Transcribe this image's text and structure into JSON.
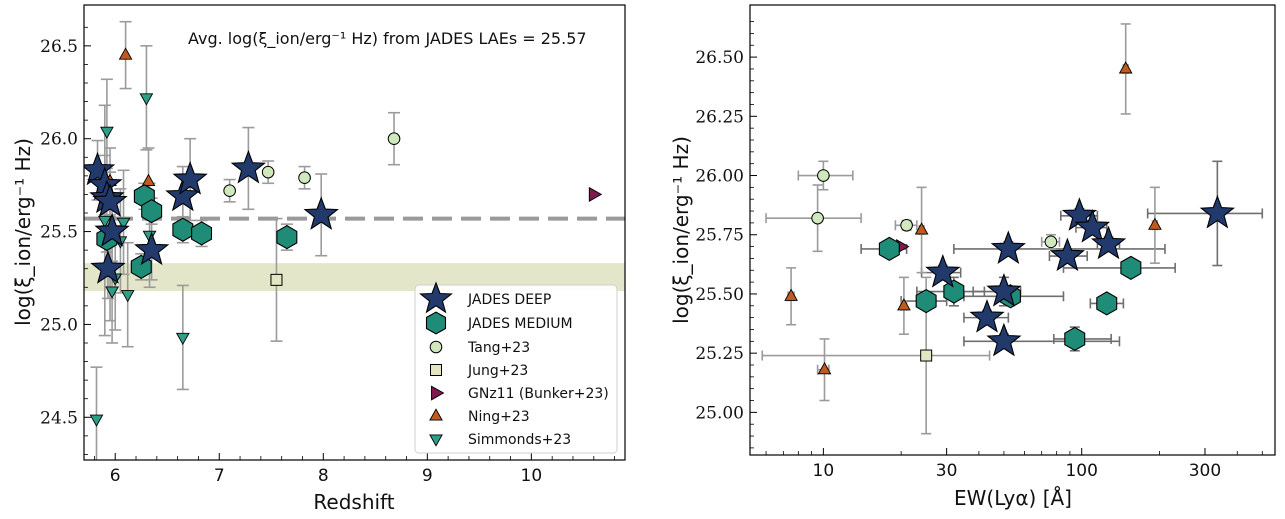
{
  "chart_data": [
    {
      "type": "scatter",
      "xlabel": "Redshift",
      "ylabel": "log(ξ_ion/erg⁻¹ Hz)",
      "xlim": [
        5.7,
        10.9
      ],
      "ylim": [
        24.27,
        26.72
      ],
      "x_ticks": [
        "6",
        "7",
        "8",
        "9",
        "10"
      ],
      "y_ticks": [
        "24.5",
        "25.0",
        "25.5",
        "26.0",
        "26.5"
      ],
      "annotation": "Avg. log(ξ_ion/erg⁻¹ Hz) from JADES LAEs = 25.57",
      "reference_line": 25.57,
      "reference_band": [
        25.18,
        25.33
      ],
      "legend_position": "lower-right",
      "series": [
        {
          "name": "JADES DEEP",
          "marker": "star",
          "color": "#213A6B",
          "points": [
            [
              5.83,
              25.83
            ],
            [
              5.9,
              25.75
            ],
            [
              5.92,
              25.68
            ],
            [
              5.95,
              25.66
            ],
            [
              5.97,
              25.5
            ],
            [
              5.93,
              25.3
            ],
            [
              6.35,
              25.4
            ],
            [
              6.65,
              25.69
            ],
            [
              6.72,
              25.78
            ],
            [
              7.28,
              25.84
            ],
            [
              7.98,
              25.59
            ]
          ]
        },
        {
          "name": "JADES MEDIUM",
          "marker": "hexagon",
          "color": "#1F8C78",
          "points": [
            [
              5.92,
              25.46
            ],
            [
              6.25,
              25.31
            ],
            [
              6.28,
              25.69
            ],
            [
              6.35,
              25.61
            ],
            [
              6.65,
              25.51
            ],
            [
              6.83,
              25.49
            ],
            [
              7.65,
              25.47
            ]
          ]
        },
        {
          "name": "Tang+23",
          "marker": "circle",
          "color": "#CFE8BD",
          "points": [
            [
              7.1,
              25.72
            ],
            [
              7.47,
              25.82
            ],
            [
              7.82,
              25.79
            ],
            [
              8.68,
              26.0
            ]
          ]
        },
        {
          "name": "Jung+23",
          "marker": "square",
          "color": "#E4E6C2",
          "points": [
            [
              7.55,
              25.24
            ]
          ]
        },
        {
          "name": "GNz11 (Bunker+23)",
          "marker": "triangle-right",
          "color": "#7E1A4D",
          "points": [
            [
              10.6,
              25.7
            ]
          ]
        },
        {
          "name": "Ning+23",
          "marker": "triangle-up",
          "color": "#C05A1E",
          "points": [
            [
              5.95,
              25.77
            ],
            [
              6.1,
              26.45
            ],
            [
              6.32,
              25.77
            ]
          ]
        },
        {
          "name": "Simmonds+23",
          "marker": "triangle-down",
          "color": "#2E9E86",
          "points": [
            [
              5.82,
              24.49
            ],
            [
              5.92,
              26.04
            ],
            [
              5.9,
              25.56
            ],
            [
              5.95,
              25.3
            ],
            [
              5.97,
              25.18
            ],
            [
              6.0,
              25.25
            ],
            [
              6.05,
              25.45
            ],
            [
              6.08,
              25.55
            ],
            [
              6.12,
              25.16
            ],
            [
              6.3,
              26.22
            ],
            [
              6.33,
              25.48
            ],
            [
              6.65,
              24.93
            ]
          ]
        }
      ]
    },
    {
      "type": "scatter",
      "xlabel": "EW(Lyα) [Å]",
      "ylabel": "log(ξ_ion/erg⁻¹ Hz)",
      "x_scale": "log",
      "xlim": [
        5.2,
        560
      ],
      "ylim": [
        24.82,
        26.72
      ],
      "x_ticks": [
        "10",
        "30",
        "100",
        "300"
      ],
      "y_ticks": [
        "25.00",
        "25.25",
        "25.50",
        "25.75",
        "26.00",
        "26.25",
        "26.50"
      ],
      "series": [
        {
          "name": "JADES DEEP",
          "marker": "star",
          "color": "#213A6B",
          "points": [
            [
              29,
              25.59
            ],
            [
              43,
              25.4
            ],
            [
              50,
              25.3
            ],
            [
              50,
              25.51
            ],
            [
              52,
              25.69
            ],
            [
              88,
              25.66
            ],
            [
              98,
              25.83
            ],
            [
              110,
              25.78
            ],
            [
              127,
              25.71
            ],
            [
              335,
              25.84
            ]
          ]
        },
        {
          "name": "JADES MEDIUM",
          "marker": "hexagon",
          "color": "#1F8C78",
          "points": [
            [
              18,
              25.69
            ],
            [
              25,
              25.47
            ],
            [
              32,
              25.51
            ],
            [
              53,
              25.49
            ],
            [
              94,
              25.31
            ],
            [
              125,
              25.46
            ],
            [
              155,
              25.61
            ]
          ]
        },
        {
          "name": "Tang+23",
          "marker": "circle",
          "color": "#CFE8BD",
          "points": [
            [
              9.5,
              25.82
            ],
            [
              10,
              26.0
            ],
            [
              21,
              25.79
            ],
            [
              76,
              25.72
            ]
          ]
        },
        {
          "name": "Jung+23",
          "marker": "square",
          "color": "#E4E6C2",
          "points": [
            [
              25,
              25.24
            ]
          ]
        },
        {
          "name": "GNz11 (Bunker+23)",
          "marker": "triangle-right",
          "color": "#7E1A4D",
          "points": [
            [
              20,
              25.7
            ]
          ]
        },
        {
          "name": "Ning+23",
          "marker": "triangle-up",
          "color": "#C05A1E",
          "points": [
            [
              7.5,
              25.49
            ],
            [
              10.1,
              25.18
            ],
            [
              20.5,
              25.45
            ],
            [
              24,
              25.77
            ],
            [
              148,
              26.45
            ],
            [
              192,
              25.79
            ]
          ]
        }
      ]
    }
  ]
}
